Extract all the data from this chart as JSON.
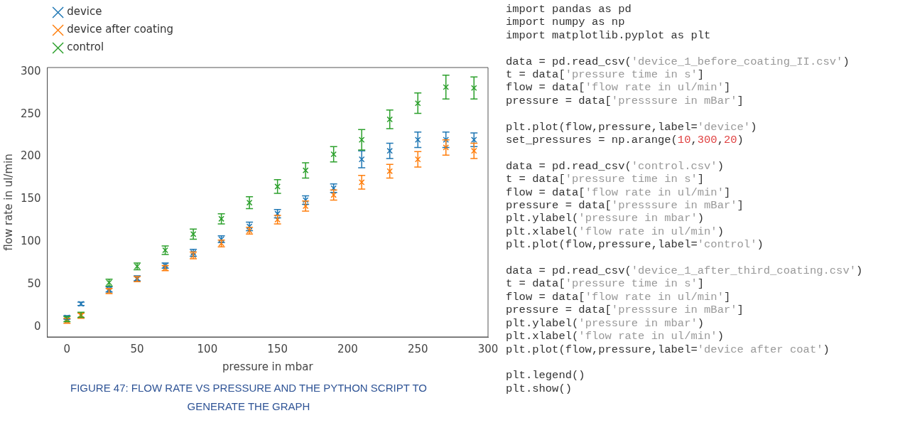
{
  "chart_data": [
    {
      "type": "scatter",
      "xlabel": "pressure in mbar",
      "ylabel": "flow rate in ul/min",
      "xlim": [
        -14,
        300
      ],
      "ylim": [
        -12,
        305
      ],
      "xticks": [
        0,
        50,
        100,
        150,
        200,
        250,
        300
      ],
      "yticks": [
        0,
        50,
        100,
        150,
        200,
        250,
        300
      ],
      "grid": false,
      "legend": "top left",
      "marker": "cross",
      "x": [
        0,
        10,
        30,
        50,
        70,
        90,
        110,
        130,
        150,
        170,
        190,
        210,
        230,
        250,
        270,
        290
      ],
      "series": [
        {
          "name": "device",
          "color": "#1f77b4",
          "values": [
            11,
            27,
            44,
            57,
            72,
            87,
            103,
            118,
            133,
            149,
            163,
            197,
            207,
            220,
            220,
            220
          ],
          "errors": [
            2,
            2,
            3,
            3,
            3,
            4,
            4,
            5,
            5,
            5,
            5,
            10,
            9,
            9,
            9,
            8
          ]
        },
        {
          "name": "device after coating",
          "color": "#ff7f0e",
          "values": [
            7,
            13,
            42,
            56,
            69,
            84,
            98,
            113,
            126,
            142,
            155,
            170,
            183,
            197,
            211,
            207
          ],
          "errors": [
            3,
            3,
            3,
            3,
            3,
            4,
            4,
            4,
            5,
            6,
            6,
            8,
            8,
            9,
            9,
            9
          ]
        },
        {
          "name": "control",
          "color": "#2ca02c",
          "values": [
            9,
            14,
            52,
            71,
            90,
            109,
            127,
            146,
            165,
            184,
            203,
            220,
            244,
            263,
            282,
            281
          ],
          "errors": [
            3,
            3,
            4,
            4,
            5,
            6,
            6,
            7,
            8,
            9,
            9,
            12,
            11,
            12,
            14,
            13
          ]
        }
      ],
      "annotations": [
        "FIGURE 47: FLOW RATE VS PRESSURE AND THE PYTHON SCRIPT TO GENERATE THE GRAPH"
      ]
    },
    {
      "type": "other",
      "annotations": [
        "import pandas as pd\nimport numpy as np\nimport matplotlib.pyplot as plt",
        "data = pd.read_csv('device_1_before_coating_II.csv')\nt = data['pressure time in s']\nflow = data['flow rate in ul/min']\npressure = data['presssure in mBar']",
        "plt.plot(flow,pressure,label='device')\nset_pressures = np.arange(10,300,20)",
        "data = pd.read_csv('control.csv')\nt = data['pressure time in s']\nflow = data['flow rate in ul/min']\npressure = data['presssure in mBar']\nplt.ylabel('pressure in mbar')\nplt.xlabel('flow rate in ul/min')\nplt.plot(flow,pressure,label='control')",
        "data = pd.read_csv('device_1_after_third_coating.csv')\nt = data['pressure time in s']\nflow = data['flow rate in ul/min']\npressure = data['presssure in mBar']\nplt.ylabel('pressure in mbar')\nplt.xlabel('flow rate in ul/min')\nplt.plot(flow,pressure,label='device after coat')",
        "plt.legend()\nplt.show()"
      ]
    }
  ]
}
